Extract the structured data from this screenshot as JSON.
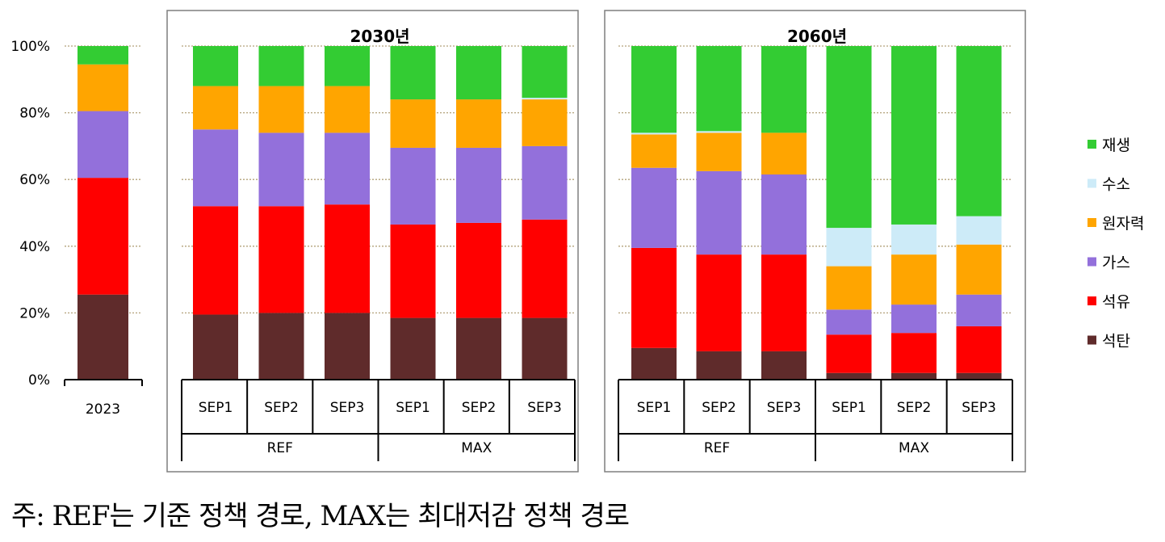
{
  "colors": {
    "석탄": "#5f2b2b",
    "석유": "#ff0000",
    "가스": "#9370db",
    "원자력": "#ffa500",
    "수소": "#cdebf8",
    "재생": "#33cc33"
  },
  "y_ticks": [
    "0%",
    "20%",
    "40%",
    "60%",
    "80%",
    "100%"
  ],
  "legend": [
    "재생",
    "수소",
    "원자력",
    "가스",
    "석유",
    "석탄"
  ],
  "note": "주: REF는 기준 정책 경로, MAX는 최대저감 정책 경로",
  "chart_data": {
    "type": "bar",
    "stacked": true,
    "ylim": [
      0,
      100
    ],
    "y_unit": "%",
    "grid": true,
    "legend_position": "right",
    "series_order": [
      "석탄",
      "석유",
      "가스",
      "원자력",
      "수소",
      "재생"
    ],
    "panels": [
      {
        "title": "",
        "bars": [
          {
            "label": "2023",
            "group": "",
            "values": {
              "석탄": 25.5,
              "석유": 35,
              "가스": 20,
              "원자력": 14,
              "수소": 0,
              "재생": 5.5
            }
          }
        ]
      },
      {
        "title": "2030년",
        "bars": [
          {
            "label": "SEP1",
            "group": "REF",
            "values": {
              "석탄": 19.5,
              "석유": 32.5,
              "가스": 23,
              "원자력": 13,
              "수소": 0,
              "재생": 12
            }
          },
          {
            "label": "SEP2",
            "group": "REF",
            "values": {
              "석탄": 20,
              "석유": 32,
              "가스": 22,
              "원자력": 14,
              "수소": 0,
              "재생": 12
            }
          },
          {
            "label": "SEP3",
            "group": "REF",
            "values": {
              "석탄": 20,
              "석유": 32.5,
              "가스": 21.5,
              "원자력": 14,
              "수소": 0,
              "재생": 12
            }
          },
          {
            "label": "SEP1",
            "group": "MAX",
            "values": {
              "석탄": 18.5,
              "석유": 28,
              "가스": 23,
              "원자력": 14.5,
              "수소": 0,
              "재생": 16
            }
          },
          {
            "label": "SEP2",
            "group": "MAX",
            "values": {
              "석탄": 18.5,
              "석유": 28.5,
              "가스": 22.5,
              "원자력": 14.5,
              "수소": 0,
              "재생": 16
            }
          },
          {
            "label": "SEP3",
            "group": "MAX",
            "values": {
              "석탄": 18.5,
              "석유": 29.5,
              "가스": 22,
              "원자력": 14,
              "수소": 0.5,
              "재생": 15.5
            }
          }
        ]
      },
      {
        "title": "2060년",
        "bars": [
          {
            "label": "SEP1",
            "group": "REF",
            "values": {
              "석탄": 9.5,
              "석유": 30,
              "가스": 24,
              "원자력": 10,
              "수소": 0.5,
              "재생": 26
            }
          },
          {
            "label": "SEP2",
            "group": "REF",
            "values": {
              "석탄": 8.5,
              "석유": 29,
              "가스": 25,
              "원자력": 11.5,
              "수소": 0.5,
              "재생": 25.5
            }
          },
          {
            "label": "SEP3",
            "group": "REF",
            "values": {
              "석탄": 8.5,
              "석유": 29,
              "가스": 24,
              "원자력": 12.5,
              "수소": 0,
              "재생": 26
            }
          },
          {
            "label": "SEP1",
            "group": "MAX",
            "values": {
              "석탄": 2,
              "석유": 11.5,
              "가스": 7.5,
              "원자력": 13,
              "수소": 11.5,
              "재생": 54.5
            }
          },
          {
            "label": "SEP2",
            "group": "MAX",
            "values": {
              "석탄": 2,
              "석유": 12,
              "가스": 8.5,
              "원자력": 15,
              "수소": 9,
              "재생": 53.5
            }
          },
          {
            "label": "SEP3",
            "group": "MAX",
            "values": {
              "석탄": 2,
              "석유": 14,
              "가스": 9.5,
              "원자력": 15,
              "수소": 8.5,
              "재생": 51
            }
          }
        ]
      }
    ]
  }
}
